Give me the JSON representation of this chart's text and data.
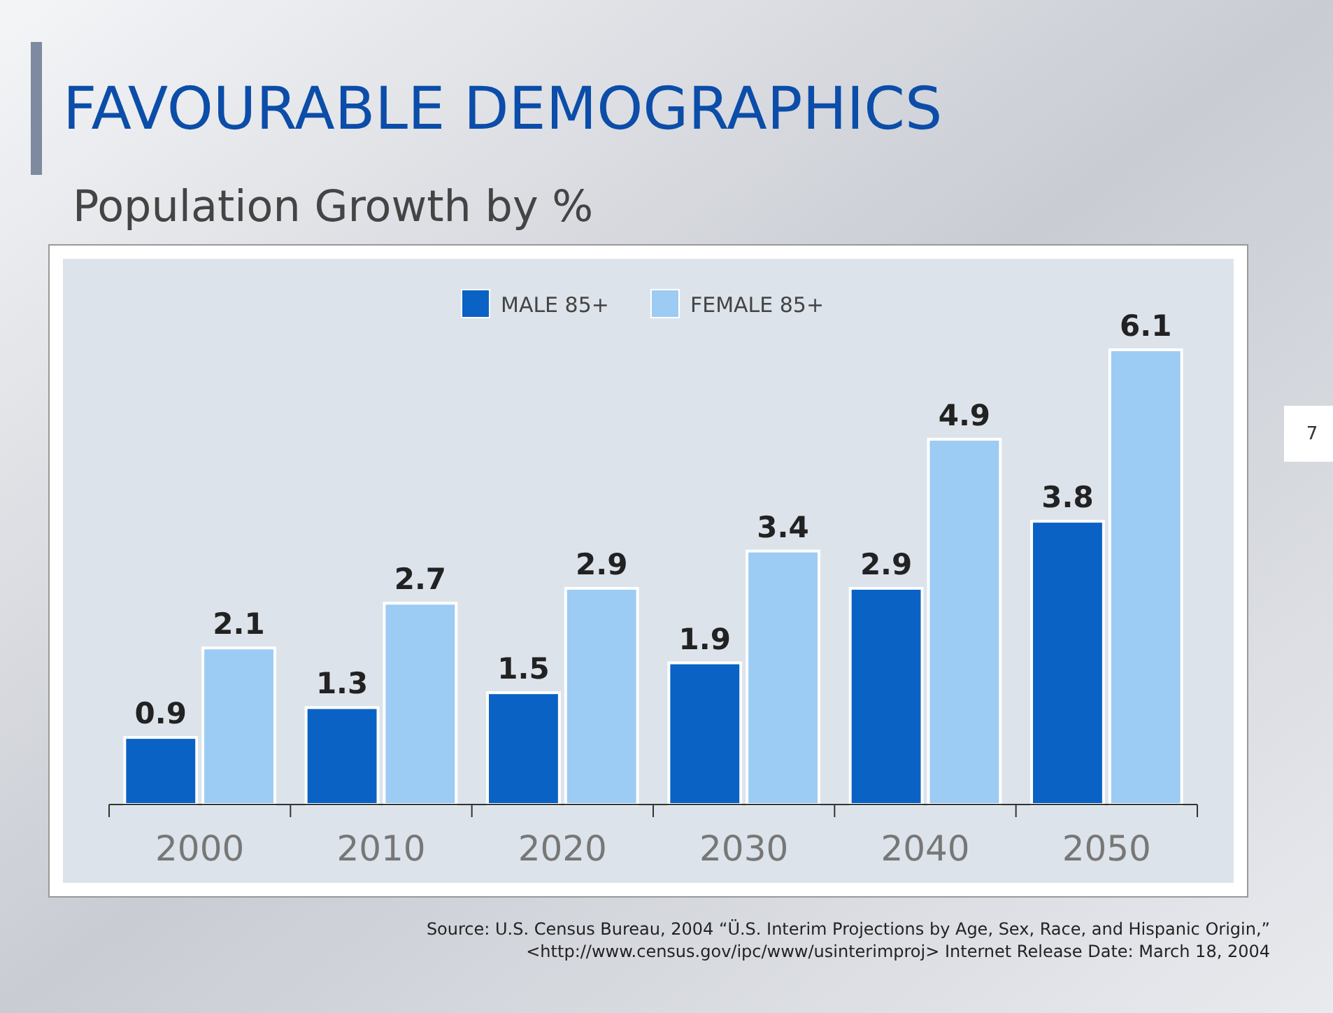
{
  "chart_data": {
    "type": "bar",
    "title": "FAVOURABLE DEMOGRAPHICS",
    "subtitle": "Population Growth by %",
    "categories": [
      "2000",
      "2010",
      "2020",
      "2030",
      "2040",
      "2050"
    ],
    "series": [
      {
        "name": "MALE 85+",
        "color": "#0a62c4",
        "values": [
          0.9,
          1.3,
          1.5,
          1.9,
          2.9,
          3.8
        ]
      },
      {
        "name": "FEMALE 85+",
        "color": "#9ccbf4",
        "values": [
          2.1,
          2.7,
          2.9,
          3.4,
          4.9,
          6.1
        ]
      }
    ],
    "data_labels": true,
    "legend": "top",
    "annotations": [
      "Source: U.S. Census Bureau, 2004 “Ü.S. Interim Projections by Age, Sex, Race, and Hispanic Origin,” <http://www.census.gov/ipc/www/usinterimproj> Internet Release Date: March 18, 2004",
      "7"
    ]
  }
}
